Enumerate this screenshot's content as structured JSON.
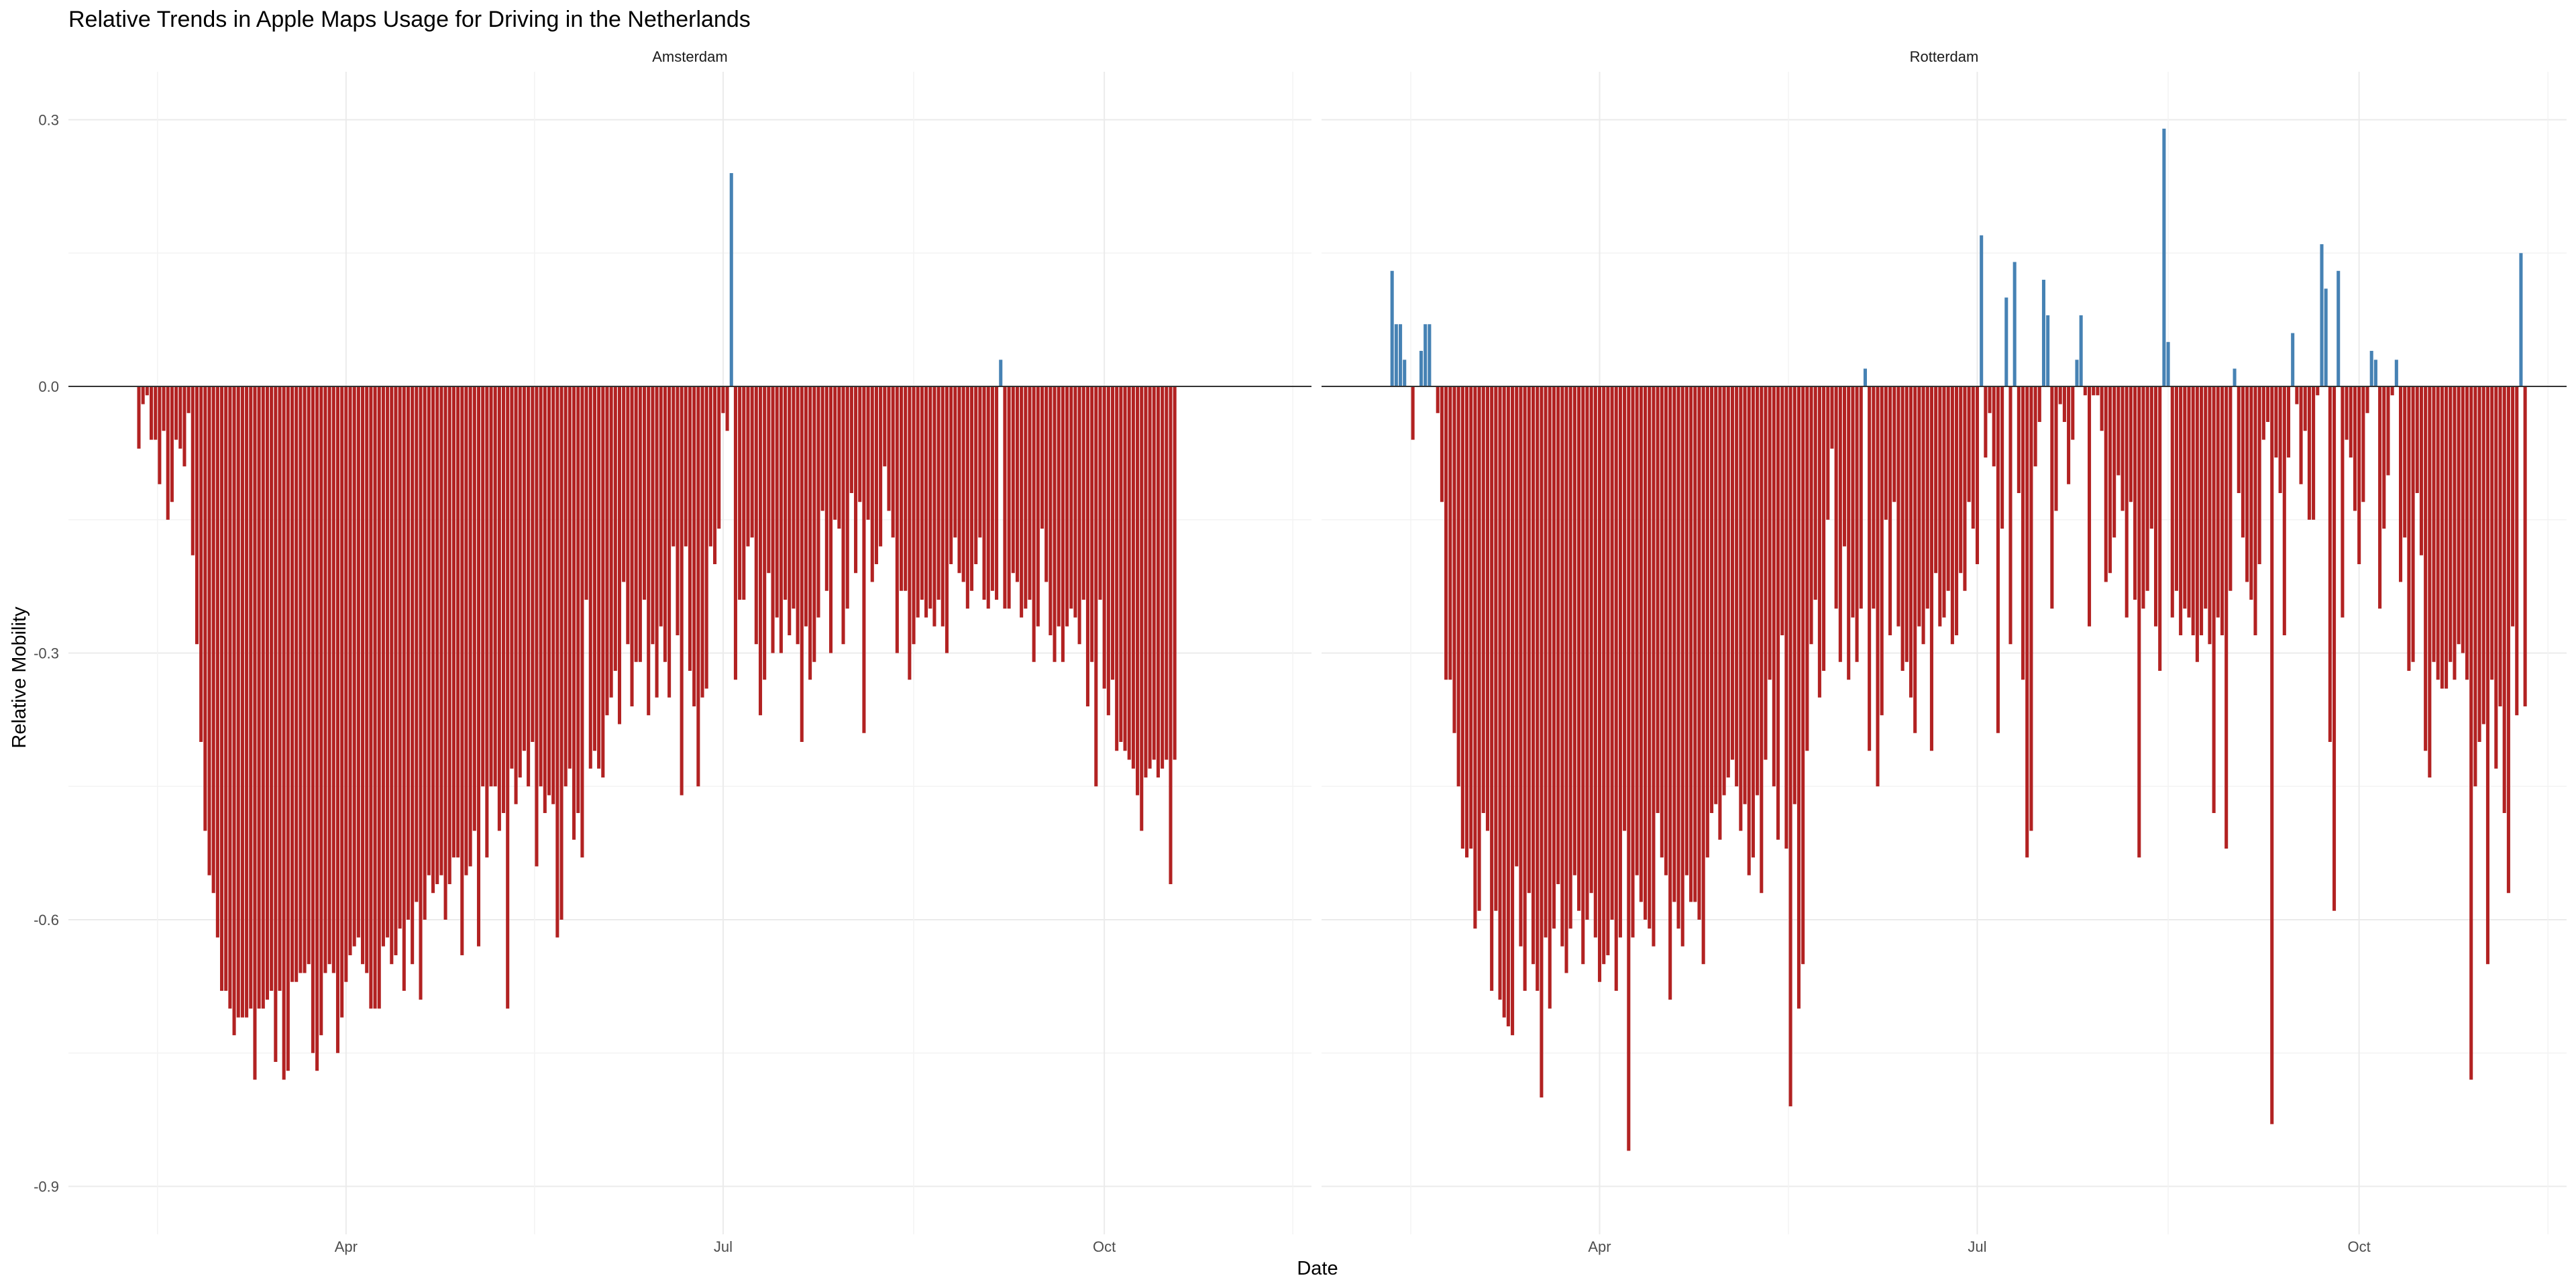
{
  "chart_data": {
    "type": "bar",
    "title": "Relative Trends in Apple Maps Usage for Driving in the Netherlands",
    "xlabel": "Date",
    "ylabel": "Relative Mobility",
    "ylim": [
      -0.9,
      0.3
    ],
    "yticks": [
      0.3,
      0.0,
      -0.3,
      -0.6,
      -0.9
    ],
    "ytick_labels": [
      "0.3",
      "0.0",
      "-0.3",
      "-0.6",
      "-0.9"
    ],
    "xlim": [
      "2020-01-25",
      "2020-11-20"
    ],
    "xticks": [
      "2020-04-01",
      "2020-07-01",
      "2020-10-01"
    ],
    "xtick_labels": [
      "Apr",
      "Jul",
      "Oct"
    ],
    "x_start": "2020-02-11",
    "colors": {
      "positive": "#4682B4",
      "negative": "#B22222",
      "baseline": "#333333"
    },
    "grid": true,
    "legend": "none",
    "panels": [
      {
        "name": "Amsterdam",
        "values": [
          -0.07,
          -0.02,
          -0.01,
          -0.06,
          -0.06,
          -0.11,
          -0.05,
          -0.15,
          -0.13,
          -0.06,
          -0.07,
          -0.09,
          -0.03,
          -0.19,
          -0.29,
          -0.4,
          -0.5,
          -0.55,
          -0.57,
          -0.62,
          -0.68,
          -0.68,
          -0.7,
          -0.73,
          -0.71,
          -0.71,
          -0.71,
          -0.7,
          -0.78,
          -0.7,
          -0.7,
          -0.69,
          -0.68,
          -0.76,
          -0.68,
          -0.78,
          -0.77,
          -0.67,
          -0.67,
          -0.66,
          -0.66,
          -0.65,
          -0.75,
          -0.77,
          -0.73,
          -0.66,
          -0.65,
          -0.66,
          -0.75,
          -0.71,
          -0.67,
          -0.64,
          -0.63,
          -0.62,
          -0.65,
          -0.66,
          -0.7,
          -0.7,
          -0.7,
          -0.63,
          -0.62,
          -0.65,
          -0.64,
          -0.61,
          -0.68,
          -0.6,
          -0.65,
          -0.58,
          -0.69,
          -0.6,
          -0.55,
          -0.57,
          -0.56,
          -0.55,
          -0.6,
          -0.56,
          -0.53,
          -0.53,
          -0.64,
          -0.55,
          -0.54,
          -0.5,
          -0.63,
          -0.45,
          -0.53,
          -0.45,
          -0.45,
          -0.5,
          -0.48,
          -0.7,
          -0.43,
          -0.47,
          -0.44,
          -0.41,
          -0.45,
          -0.4,
          -0.54,
          -0.45,
          -0.48,
          -0.46,
          -0.47,
          -0.62,
          -0.6,
          -0.45,
          -0.43,
          -0.51,
          -0.48,
          -0.53,
          -0.24,
          -0.43,
          -0.41,
          -0.43,
          -0.44,
          -0.37,
          -0.35,
          -0.32,
          -0.38,
          -0.22,
          -0.29,
          -0.36,
          -0.31,
          -0.31,
          -0.24,
          -0.37,
          -0.29,
          -0.35,
          -0.27,
          -0.31,
          -0.35,
          -0.18,
          -0.28,
          -0.46,
          -0.18,
          -0.32,
          -0.36,
          -0.45,
          -0.35,
          -0.34,
          -0.18,
          -0.2,
          -0.16,
          -0.03,
          -0.05,
          0.24,
          -0.33,
          -0.24,
          -0.24,
          -0.18,
          -0.17,
          -0.29,
          -0.37,
          -0.33,
          -0.21,
          -0.3,
          -0.26,
          -0.3,
          -0.24,
          -0.28,
          -0.25,
          -0.29,
          -0.4,
          -0.27,
          -0.33,
          -0.31,
          -0.26,
          -0.14,
          -0.23,
          -0.3,
          -0.15,
          -0.16,
          -0.29,
          -0.25,
          -0.12,
          -0.21,
          -0.13,
          -0.39,
          -0.15,
          -0.22,
          -0.2,
          -0.18,
          -0.09,
          -0.14,
          -0.17,
          -0.3,
          -0.23,
          -0.23,
          -0.33,
          -0.29,
          -0.26,
          -0.24,
          -0.26,
          -0.25,
          -0.27,
          -0.24,
          -0.27,
          -0.3,
          -0.2,
          -0.17,
          -0.21,
          -0.22,
          -0.25,
          -0.23,
          -0.2,
          -0.17,
          -0.24,
          -0.25,
          -0.23,
          -0.24,
          0.03,
          -0.25,
          -0.25,
          -0.21,
          -0.22,
          -0.26,
          -0.25,
          -0.24,
          -0.31,
          -0.27,
          -0.16,
          -0.22,
          -0.28,
          -0.31,
          -0.27,
          -0.31,
          -0.27,
          -0.25,
          -0.26,
          -0.29,
          -0.24,
          -0.36,
          -0.31,
          -0.45,
          -0.24,
          -0.34,
          -0.37,
          -0.33,
          -0.41,
          -0.4,
          -0.41,
          -0.42,
          -0.43,
          -0.46,
          -0.5,
          -0.44,
          -0.43,
          -0.42,
          -0.44,
          -0.43,
          -0.42,
          -0.56,
          -0.42
        ],
        "value_note": "Daily values; index 0 = 2020-02-11"
      },
      {
        "name": "Rotterdam",
        "values": [
          0.13,
          0.07,
          0.07,
          0.03,
          0.0,
          -0.06,
          0.0,
          0.04,
          0.07,
          0.07,
          0.0,
          -0.03,
          -0.13,
          -0.33,
          -0.33,
          -0.39,
          -0.45,
          -0.52,
          -0.53,
          -0.52,
          -0.61,
          -0.59,
          -0.48,
          -0.5,
          -0.68,
          -0.59,
          -0.69,
          -0.71,
          -0.72,
          -0.73,
          -0.54,
          -0.63,
          -0.68,
          -0.57,
          -0.65,
          -0.68,
          -0.8,
          -0.62,
          -0.7,
          -0.61,
          -0.56,
          -0.63,
          -0.66,
          -0.61,
          -0.55,
          -0.59,
          -0.65,
          -0.6,
          -0.57,
          -0.62,
          -0.67,
          -0.65,
          -0.64,
          -0.6,
          -0.68,
          -0.62,
          -0.5,
          -0.86,
          -0.62,
          -0.55,
          -0.58,
          -0.6,
          -0.61,
          -0.63,
          -0.48,
          -0.53,
          -0.55,
          -0.69,
          -0.58,
          -0.61,
          -0.63,
          -0.55,
          -0.58,
          -0.58,
          -0.6,
          -0.65,
          -0.53,
          -0.48,
          -0.47,
          -0.51,
          -0.46,
          -0.44,
          -0.42,
          -0.45,
          -0.5,
          -0.47,
          -0.55,
          -0.53,
          -0.46,
          -0.57,
          -0.42,
          -0.33,
          -0.45,
          -0.51,
          -0.28,
          -0.52,
          -0.81,
          -0.47,
          -0.7,
          -0.65,
          -0.41,
          -0.29,
          -0.24,
          -0.35,
          -0.32,
          -0.15,
          -0.07,
          -0.25,
          -0.31,
          -0.18,
          -0.33,
          -0.26,
          -0.31,
          -0.25,
          0.02,
          -0.41,
          -0.25,
          -0.45,
          -0.37,
          -0.15,
          -0.28,
          -0.13,
          -0.27,
          -0.32,
          -0.31,
          -0.35,
          -0.39,
          -0.27,
          -0.29,
          -0.25,
          -0.41,
          -0.21,
          -0.27,
          -0.26,
          -0.23,
          -0.29,
          -0.28,
          -0.21,
          -0.23,
          -0.13,
          -0.16,
          -0.2,
          0.17,
          -0.08,
          -0.03,
          -0.09,
          -0.39,
          -0.16,
          0.1,
          -0.29,
          0.14,
          -0.12,
          -0.33,
          -0.53,
          -0.5,
          -0.09,
          -0.04,
          0.12,
          0.08,
          -0.25,
          -0.14,
          -0.02,
          -0.04,
          -0.11,
          -0.06,
          0.03,
          0.08,
          -0.01,
          -0.27,
          -0.01,
          -0.01,
          -0.05,
          -0.22,
          -0.21,
          -0.17,
          -0.1,
          -0.14,
          -0.26,
          -0.13,
          -0.24,
          -0.53,
          -0.25,
          -0.23,
          -0.16,
          -0.27,
          -0.32,
          0.29,
          0.05,
          -0.26,
          -0.23,
          -0.28,
          -0.25,
          -0.26,
          -0.28,
          -0.31,
          -0.28,
          -0.25,
          -0.29,
          -0.48,
          -0.26,
          -0.28,
          -0.52,
          -0.23,
          0.02,
          -0.12,
          -0.17,
          -0.22,
          -0.24,
          -0.28,
          -0.2,
          -0.06,
          -0.04,
          -0.83,
          -0.08,
          -0.12,
          -0.28,
          -0.08,
          0.06,
          -0.02,
          -0.11,
          -0.05,
          -0.15,
          -0.15,
          -0.01,
          0.16,
          0.11,
          -0.4,
          -0.59,
          0.13,
          -0.26,
          -0.06,
          -0.08,
          -0.14,
          -0.2,
          -0.13,
          -0.03,
          0.04,
          0.03,
          -0.25,
          -0.16,
          -0.1,
          -0.01,
          0.03,
          -0.22,
          -0.17,
          -0.32,
          -0.31,
          -0.12,
          -0.19,
          -0.41,
          -0.44,
          -0.31,
          -0.33,
          -0.34,
          -0.34,
          -0.31,
          -0.33,
          -0.29,
          -0.3,
          -0.33,
          -0.78,
          -0.45,
          -0.4,
          -0.38,
          -0.65,
          -0.33,
          -0.43,
          -0.36,
          -0.48,
          -0.57,
          -0.27,
          -0.37,
          0.15,
          -0.36
        ],
        "value_note": "Daily values; index 0 = 2020-02-11"
      }
    ]
  }
}
